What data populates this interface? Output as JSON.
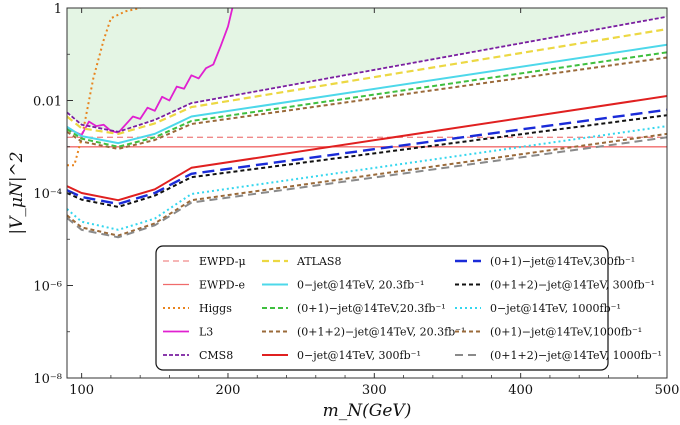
{
  "chart_data": {
    "type": "line",
    "xlabel": "m_N(GeV)",
    "ylabel": "|V_μN|^2",
    "x_scale": "linear",
    "y_scale": "log",
    "xlim": [
      90,
      500
    ],
    "ylim": [
      1e-08,
      1
    ],
    "x_ticks": [
      100,
      200,
      300,
      400,
      500
    ],
    "y_ticks": [
      {
        "value": 1e-08,
        "label": "10⁻⁸"
      },
      {
        "value": 1e-06,
        "label": "10⁻⁶"
      },
      {
        "value": 0.0001,
        "label": "10⁻⁴"
      },
      {
        "value": 0.01,
        "label": "0.01"
      },
      {
        "value": 1,
        "label": "1"
      }
    ],
    "grid": false,
    "legend_position": "lower-middle",
    "shaded_region": {
      "color": "#e4f5e4",
      "note": "excluded above CMS8 bound"
    },
    "series": [
      {
        "name": "EWPD-μ",
        "color": "#f08a8a",
        "dash": "6,4",
        "width": 1.3,
        "points": [
          [
            90,
            0.0016
          ],
          [
            500,
            0.0016
          ]
        ]
      },
      {
        "name": "EWPD-e",
        "color": "#f06b6b",
        "dash": "",
        "width": 1.3,
        "points": [
          [
            90,
            0.001
          ],
          [
            500,
            0.001
          ]
        ]
      },
      {
        "name": "Higgs",
        "color": "#e8841e",
        "dash": "2,3",
        "width": 2,
        "points": [
          [
            90,
            0.0004
          ],
          [
            95,
            0.0004
          ],
          [
            100,
            0.0015
          ],
          [
            108,
            0.03
          ],
          [
            115,
            0.2
          ],
          [
            120,
            0.6
          ],
          [
            130,
            0.85
          ],
          [
            140,
            1.0
          ]
        ]
      },
      {
        "name": "L3",
        "color": "#e020d0",
        "dash": "",
        "width": 1.8,
        "points": [
          [
            90,
            0.0025
          ],
          [
            100,
            0.0018
          ],
          [
            105,
            0.0035
          ],
          [
            110,
            0.0028
          ],
          [
            115,
            0.003
          ],
          [
            120,
            0.0022
          ],
          [
            125,
            0.002
          ],
          [
            130,
            0.003
          ],
          [
            135,
            0.0045
          ],
          [
            140,
            0.004
          ],
          [
            145,
            0.007
          ],
          [
            150,
            0.006
          ],
          [
            155,
            0.012
          ],
          [
            160,
            0.01
          ],
          [
            165,
            0.02
          ],
          [
            170,
            0.018
          ],
          [
            175,
            0.035
          ],
          [
            180,
            0.03
          ],
          [
            185,
            0.05
          ],
          [
            190,
            0.06
          ],
          [
            195,
            0.15
          ],
          [
            200,
            0.4
          ],
          [
            203,
            1.0
          ]
        ]
      },
      {
        "name": "CMS8",
        "color": "#7a1fa0",
        "dash": "4,2",
        "width": 1.8,
        "points": [
          [
            90,
            0.0055
          ],
          [
            100,
            0.003
          ],
          [
            125,
            0.0021
          ],
          [
            150,
            0.0038
          ],
          [
            175,
            0.0088
          ],
          [
            500,
            0.65
          ]
        ]
      },
      {
        "name": "ATLAS8",
        "color": "#ecd843",
        "dash": "7,4",
        "width": 2.2,
        "points": [
          [
            90,
            0.0045
          ],
          [
            100,
            0.0025
          ],
          [
            125,
            0.0019
          ],
          [
            150,
            0.0032
          ],
          [
            175,
            0.0072
          ],
          [
            500,
            0.35
          ]
        ]
      },
      {
        "name": "0−jet@14TeV, 20.3fb⁻¹",
        "color": "#4dd8ea",
        "dash": "",
        "width": 2,
        "points": [
          [
            90,
            0.0027
          ],
          [
            100,
            0.0017
          ],
          [
            125,
            0.0012
          ],
          [
            150,
            0.0019
          ],
          [
            175,
            0.0045
          ],
          [
            500,
            0.16
          ]
        ]
      },
      {
        "name": "(0+1)−jet@14TeV,20.3fb⁻¹",
        "color": "#3fbf3f",
        "dash": "5,3",
        "width": 2,
        "points": [
          [
            90,
            0.0024
          ],
          [
            100,
            0.0015
          ],
          [
            125,
            0.001
          ],
          [
            150,
            0.0016
          ],
          [
            175,
            0.0036
          ],
          [
            500,
            0.11
          ]
        ]
      },
      {
        "name": "(0+1+2)−jet@14TeV, 20.3fb⁻¹",
        "color": "#9a6a3a",
        "dash": "4,3",
        "width": 2,
        "points": [
          [
            90,
            0.0021
          ],
          [
            100,
            0.0013
          ],
          [
            125,
            0.0009
          ],
          [
            150,
            0.0014
          ],
          [
            175,
            0.0031
          ],
          [
            500,
            0.085
          ]
        ]
      },
      {
        "name": "0−jet@14TeV, 300fb⁻¹",
        "color": "#e02020",
        "dash": "",
        "width": 2,
        "points": [
          [
            90,
            0.00014
          ],
          [
            100,
            0.0001
          ],
          [
            125,
            7e-05
          ],
          [
            150,
            0.00012
          ],
          [
            175,
            0.00035
          ],
          [
            500,
            0.0125
          ]
        ]
      },
      {
        "name": "(0+1)−jet@14TeV,300fb⁻¹",
        "color": "#1a2bd8",
        "dash": "12,6",
        "width": 2.4,
        "points": [
          [
            90,
            0.000115
          ],
          [
            100,
            8.2e-05
          ],
          [
            125,
            5.8e-05
          ],
          [
            150,
            0.0001
          ],
          [
            175,
            0.00026
          ],
          [
            500,
            0.0063
          ]
        ]
      },
      {
        "name": "(0+1+2)−jet@14TeV, 300fb⁻¹",
        "color": "#111111",
        "dash": "4,3",
        "width": 2,
        "points": [
          [
            90,
            0.0001
          ],
          [
            100,
            7.2e-05
          ],
          [
            125,
            5e-05
          ],
          [
            150,
            8.8e-05
          ],
          [
            175,
            0.00022
          ],
          [
            500,
            0.0048
          ]
        ]
      },
      {
        "name": "0−jet@14TeV, 1000fb⁻¹",
        "color": "#33d6ee",
        "dash": "2,3",
        "width": 2,
        "points": [
          [
            90,
            4.5e-05
          ],
          [
            100,
            2.4e-05
          ],
          [
            125,
            1.6e-05
          ],
          [
            150,
            2.8e-05
          ],
          [
            175,
            9.5e-05
          ],
          [
            500,
            0.0028
          ]
        ]
      },
      {
        "name": "(0+1)−jet@14TeV,1000fb⁻¹",
        "color": "#9a6a3a",
        "dash": "4,3",
        "width": 2,
        "points": [
          [
            90,
            3.3e-05
          ],
          [
            100,
            1.8e-05
          ],
          [
            125,
            1.2e-05
          ],
          [
            150,
            2.2e-05
          ],
          [
            175,
            7e-05
          ],
          [
            500,
            0.0019
          ]
        ]
      },
      {
        "name": "(0+1+2)−jet@14TeV, 1000fb⁻¹",
        "color": "#8a8a8a",
        "dash": "8,5",
        "width": 2,
        "points": [
          [
            90,
            2.9e-05
          ],
          [
            100,
            1.6e-05
          ],
          [
            125,
            1.1e-05
          ],
          [
            150,
            2e-05
          ],
          [
            175,
            6.2e-05
          ],
          [
            500,
            0.0016
          ]
        ]
      }
    ]
  }
}
